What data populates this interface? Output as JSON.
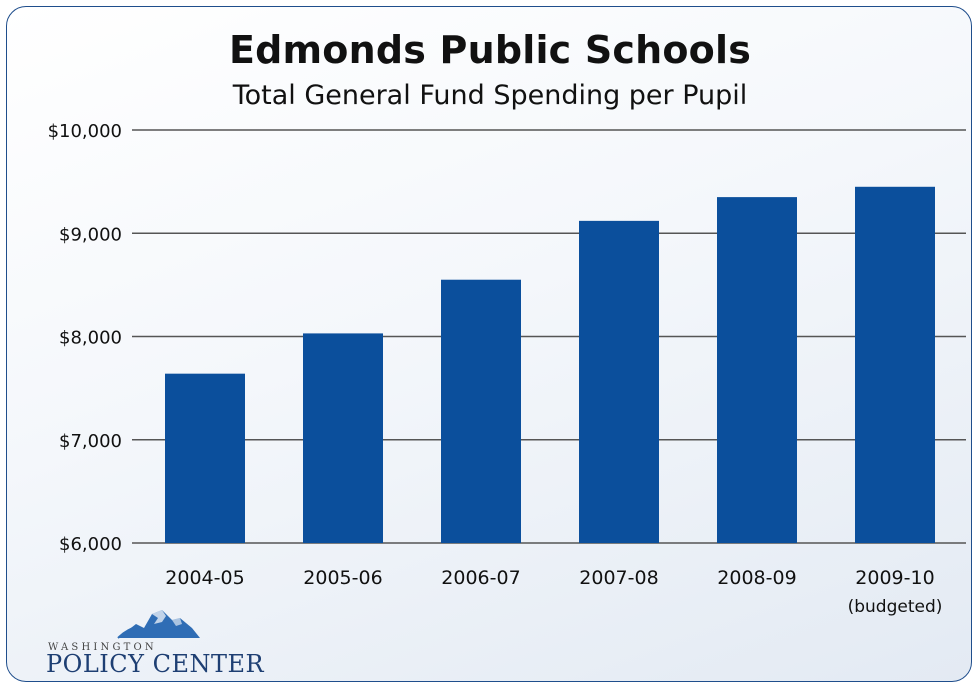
{
  "chart_data": {
    "type": "bar",
    "title": "Edmonds Public Schools",
    "subtitle": "Total General Fund Spending per Pupil",
    "categories": [
      "2004-05",
      "2005-06",
      "2006-07",
      "2007-08",
      "2008-09",
      "2009-10"
    ],
    "category_notes": [
      "",
      "",
      "",
      "",
      "",
      "(budgeted)"
    ],
    "values": [
      7640,
      8030,
      8550,
      9120,
      9350,
      9450
    ],
    "ylim": [
      6000,
      10000
    ],
    "yticks": [
      6000,
      7000,
      8000,
      9000,
      10000
    ],
    "ytick_labels": [
      "$6,000",
      "$7,000",
      "$8,000",
      "$9,000",
      "$10,000"
    ],
    "xlabel": "",
    "ylabel": "",
    "grid": true,
    "legend": "none",
    "bar_color": "#0b4f9c"
  },
  "logo": {
    "line1": "WASHINGTON",
    "line2": "POLICY CENTER",
    "mountain_color": "#2f6db5"
  }
}
